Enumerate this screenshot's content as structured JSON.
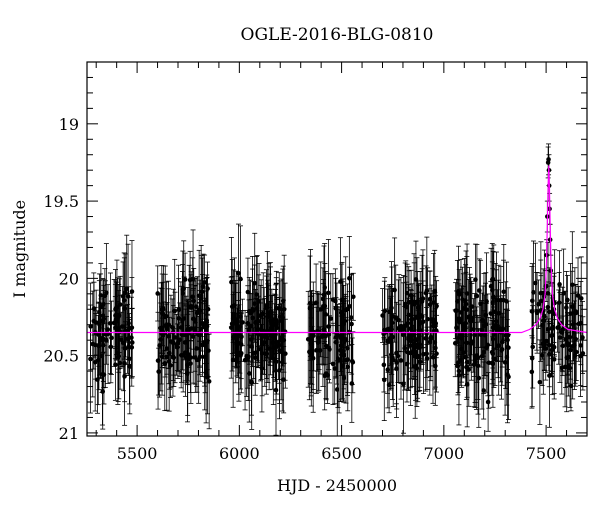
{
  "chart_data": {
    "type": "scatter",
    "title": "OGLE-2016-BLG-0810",
    "xlabel": "HJD - 2450000",
    "ylabel": "I magnitude",
    "xlim": [
      5255,
      7700
    ],
    "ylim": [
      21.02,
      18.6
    ],
    "y_inverted": true,
    "x_ticks": [
      5500,
      6000,
      6500,
      7000,
      7500
    ],
    "x_tick_labels": [
      "5500",
      "6000",
      "6500",
      "7000",
      "7500"
    ],
    "y_ticks": [
      19,
      19.5,
      20,
      20.5,
      21
    ],
    "y_tick_labels": [
      "19",
      "19.5",
      "20",
      "20.5",
      "21"
    ],
    "grid": false,
    "colors": {
      "data": "#000000",
      "model": "#ff00ff"
    },
    "observing_seasons": [
      {
        "start": 5270,
        "end": 5480,
        "n_points": 80
      },
      {
        "start": 5600,
        "end": 5860,
        "n_points": 120
      },
      {
        "start": 5960,
        "end": 6225,
        "n_points": 130
      },
      {
        "start": 6335,
        "end": 6560,
        "n_points": 90
      },
      {
        "start": 6700,
        "end": 6970,
        "n_points": 120
      },
      {
        "start": 7055,
        "end": 7320,
        "n_points": 120
      },
      {
        "start": 7430,
        "end": 7680,
        "n_points": 90
      }
    ],
    "baseline_magnitude": 20.35,
    "typical_error": 0.25,
    "scatter": 0.22,
    "peak": {
      "x": 7513,
      "y": 19.27
    },
    "highlight_points": [
      {
        "x": 7510,
        "y": 19.25
      },
      {
        "x": 7512,
        "y": 19.23
      },
      {
        "x": 7514,
        "y": 19.3
      },
      {
        "x": 7515,
        "y": 19.4
      },
      {
        "x": 7517,
        "y": 19.55
      },
      {
        "x": 7520,
        "y": 19.75
      },
      {
        "x": 7523,
        "y": 19.95
      },
      {
        "x": 7506,
        "y": 19.6
      },
      {
        "x": 7503,
        "y": 19.85
      },
      {
        "x": 7500,
        "y": 20.05
      }
    ],
    "model_curve": {
      "name": "",
      "points": [
        [
          5255,
          20.35
        ],
        [
          7380,
          20.35
        ],
        [
          7420,
          20.33
        ],
        [
          7450,
          20.3
        ],
        [
          7470,
          20.26
        ],
        [
          7485,
          20.2
        ],
        [
          7495,
          20.1
        ],
        [
          7502,
          19.9
        ],
        [
          7507,
          19.6
        ],
        [
          7510,
          19.4
        ],
        [
          7513,
          19.27
        ],
        [
          7516,
          19.4
        ],
        [
          7519,
          19.6
        ],
        [
          7524,
          19.9
        ],
        [
          7531,
          20.1
        ],
        [
          7541,
          20.2
        ],
        [
          7556,
          20.26
        ],
        [
          7576,
          20.3
        ],
        [
          7606,
          20.33
        ],
        [
          7650,
          20.34
        ],
        [
          7700,
          20.35
        ]
      ]
    }
  }
}
